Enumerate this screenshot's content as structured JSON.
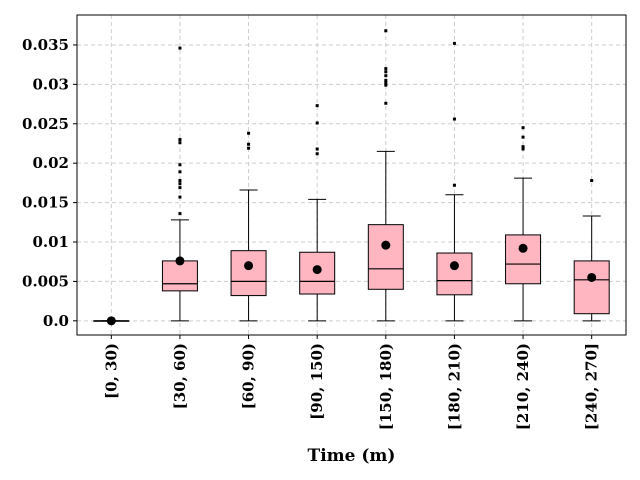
{
  "chart_data": {
    "type": "box",
    "title": "",
    "xlabel": "Time (m)",
    "ylabel": "",
    "ylim": [
      -0.0018,
      0.0388
    ],
    "y_ticks": [
      0.0,
      0.005,
      0.01,
      0.015,
      0.02,
      0.025,
      0.03,
      0.035
    ],
    "y_tick_labels": [
      "0.0",
      "0.005",
      "0.01",
      "0.015",
      "0.02",
      "0.025",
      "0.03",
      "0.035"
    ],
    "grid": true,
    "colors": {
      "box_fill": "#ffb6c1",
      "box_edge": "#000000",
      "grid": "#cccccc"
    },
    "categories": [
      "[0, 30)",
      "[30, 60)",
      "[60, 90)",
      "[90, 150)",
      "[150, 180)",
      "[180, 210)",
      "[210, 240)",
      "[240, 270]"
    ],
    "boxes": [
      {
        "whisker_low": 0.0,
        "q1": 0.0,
        "median": 0.0,
        "q3": 0.0,
        "whisker_high": 0.0,
        "mean": 0.0,
        "outliers": []
      },
      {
        "whisker_low": 0.0,
        "q1": 0.0038,
        "median": 0.0047,
        "q3": 0.0076,
        "whisker_high": 0.0128,
        "mean": 0.0076,
        "outliers": [
          0.0136,
          0.0157,
          0.0169,
          0.0174,
          0.0178,
          0.0189,
          0.0198,
          0.0226,
          0.023,
          0.0346
        ]
      },
      {
        "whisker_low": 0.0,
        "q1": 0.0032,
        "median": 0.005,
        "q3": 0.0089,
        "whisker_high": 0.0166,
        "mean": 0.007,
        "outliers": [
          0.0219,
          0.0224,
          0.0238
        ]
      },
      {
        "whisker_low": 0.0,
        "q1": 0.0034,
        "median": 0.005,
        "q3": 0.0087,
        "whisker_high": 0.0154,
        "mean": 0.0065,
        "outliers": [
          0.0212,
          0.0218,
          0.0251,
          0.0273
        ]
      },
      {
        "whisker_low": 0.0,
        "q1": 0.004,
        "median": 0.0066,
        "q3": 0.0122,
        "whisker_high": 0.0215,
        "mean": 0.0096,
        "outliers": [
          0.0276,
          0.0299,
          0.0302,
          0.0305,
          0.0311,
          0.0316,
          0.032,
          0.0368
        ]
      },
      {
        "whisker_low": 0.0,
        "q1": 0.0033,
        "median": 0.0051,
        "q3": 0.0086,
        "whisker_high": 0.016,
        "mean": 0.007,
        "outliers": [
          0.0172,
          0.0256,
          0.0352
        ]
      },
      {
        "whisker_low": 0.0,
        "q1": 0.0047,
        "median": 0.0072,
        "q3": 0.0109,
        "whisker_high": 0.0181,
        "mean": 0.0092,
        "outliers": [
          0.0218,
          0.0221,
          0.0233,
          0.0245
        ]
      },
      {
        "whisker_low": 0.0,
        "q1": 0.0009,
        "median": 0.0052,
        "q3": 0.0076,
        "whisker_high": 0.0133,
        "mean": 0.0055,
        "outliers": [
          0.0178
        ]
      }
    ]
  }
}
